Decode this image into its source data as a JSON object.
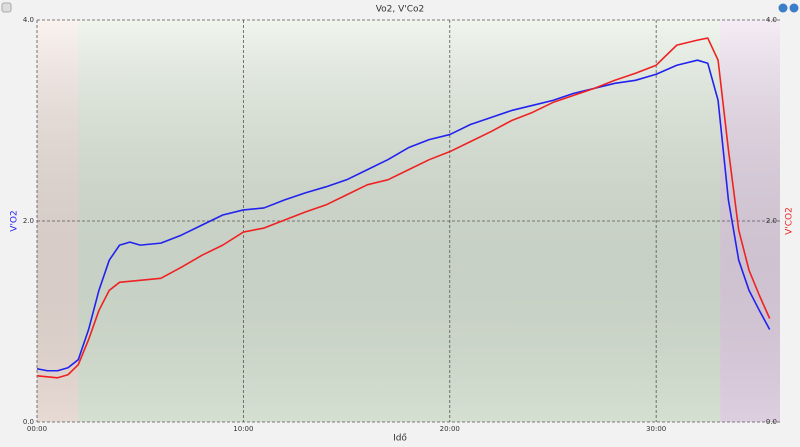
{
  "chart_data": {
    "type": "line",
    "title": "Vo2, V'Co2",
    "xlabel": "Idő",
    "ylabel": "V'O2",
    "y2label": "V'CO2",
    "x": [
      0,
      0.5,
      1,
      1.5,
      2,
      2.5,
      3,
      3.5,
      4,
      4.5,
      5,
      6,
      7,
      8,
      9,
      10,
      11,
      12,
      13,
      14,
      15,
      16,
      17,
      18,
      19,
      20,
      21,
      22,
      23,
      24,
      25,
      26,
      27,
      28,
      29,
      30,
      31,
      32,
      32.5,
      33,
      33.5,
      34,
      34.5,
      35,
      35.5
    ],
    "series": [
      {
        "name": "V'O2",
        "color": "#2222ee",
        "values": [
          0.53,
          0.51,
          0.51,
          0.54,
          0.62,
          0.92,
          1.31,
          1.61,
          1.76,
          1.79,
          1.76,
          1.78,
          1.86,
          1.96,
          2.06,
          2.11,
          2.13,
          2.21,
          2.28,
          2.34,
          2.41,
          2.51,
          2.61,
          2.73,
          2.81,
          2.86,
          2.96,
          3.03,
          3.1,
          3.15,
          3.2,
          3.27,
          3.32,
          3.37,
          3.4,
          3.46,
          3.55,
          3.6,
          3.57,
          3.2,
          2.21,
          1.61,
          1.31,
          1.11,
          0.92
        ]
      },
      {
        "name": "V'CO2",
        "color": "#ee2222",
        "axis": "y2",
        "values": [
          0.46,
          0.45,
          0.44,
          0.47,
          0.57,
          0.82,
          1.11,
          1.31,
          1.39,
          1.4,
          1.41,
          1.43,
          1.54,
          1.66,
          1.76,
          1.89,
          1.93,
          2.01,
          2.09,
          2.16,
          2.26,
          2.36,
          2.41,
          2.51,
          2.61,
          2.69,
          2.79,
          2.89,
          3.0,
          3.08,
          3.18,
          3.25,
          3.32,
          3.4,
          3.47,
          3.55,
          3.75,
          3.8,
          3.82,
          3.6,
          2.71,
          1.91,
          1.51,
          1.26,
          1.03
        ]
      }
    ],
    "regions": [
      {
        "from": 0,
        "to": 2,
        "color": "#f6e8e2"
      },
      {
        "from": 2,
        "to": 33.1,
        "color": "#e3eedf"
      },
      {
        "from": 33.1,
        "to": 36,
        "color": "#ecdcee"
      }
    ],
    "xlim": [
      0,
      36
    ],
    "xticks": [
      {
        "value": 0,
        "label": "00:00"
      },
      {
        "value": 10,
        "label": "10:00"
      },
      {
        "value": 20,
        "label": "20:00"
      },
      {
        "value": 30,
        "label": "30:00"
      }
    ],
    "ylim": [
      0,
      4
    ],
    "yticks": [
      {
        "value": 0,
        "label": "0.0"
      },
      {
        "value": 2,
        "label": "2.0"
      },
      {
        "value": 4,
        "label": "4.0"
      }
    ],
    "y2lim": [
      0,
      4
    ],
    "y2ticks": [
      {
        "value": 0,
        "label": "0.0"
      },
      {
        "value": 2,
        "label": "2.0"
      },
      {
        "value": 4,
        "label": "4.0"
      }
    ],
    "grid": true
  }
}
